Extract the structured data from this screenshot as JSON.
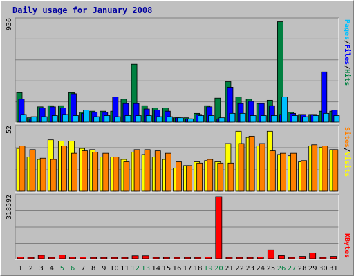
{
  "title": "Daily usage for January 2008",
  "colors": {
    "hits": "#008040",
    "files": "#0000FF",
    "pages": "#00C0FF",
    "visits": "#FFFF00",
    "sites": "#FF8000",
    "kbytes": "#FF0000",
    "weekday_label": "#000000",
    "weekend_label": "#008040",
    "background": "#C0C0C0",
    "plot_bg": "#C0C0C0"
  },
  "panels": {
    "top": {
      "ymax_label": "936",
      "legend": [
        "Pages",
        "/",
        "Files",
        "/",
        "Hits"
      ]
    },
    "middle": {
      "ymax_label": "52",
      "legend": [
        "Sites",
        "/",
        "Visits"
      ]
    },
    "bottom": {
      "ymax_label": "318592",
      "legend": [
        "KBytes"
      ]
    }
  },
  "chart_data": [
    {
      "type": "bar",
      "title": "Daily usage for January 2008",
      "categories": [
        "1",
        "2",
        "3",
        "4",
        "5",
        "6",
        "7",
        "8",
        "9",
        "10",
        "11",
        "12",
        "13",
        "14",
        "15",
        "16",
        "17",
        "18",
        "19",
        "20",
        "21",
        "22",
        "23",
        "24",
        "25",
        "26",
        "27",
        "28",
        "29",
        "30",
        "31"
      ],
      "weekend_days": [
        "5",
        "6",
        "12",
        "13",
        "19",
        "20",
        "26",
        "27"
      ],
      "ylim": [
        0,
        936
      ],
      "series": [
        {
          "name": "Hits",
          "values": [
            270,
            40,
            140,
            150,
            150,
            270,
            90,
            100,
            100,
            100,
            210,
            530,
            150,
            130,
            130,
            40,
            40,
            80,
            150,
            220,
            370,
            230,
            210,
            170,
            200,
            920,
            90,
            70,
            70,
            100,
            100
          ]
        },
        {
          "name": "Files",
          "values": [
            210,
            30,
            130,
            140,
            130,
            260,
            80,
            90,
            90,
            230,
            170,
            170,
            120,
            110,
            100,
            40,
            30,
            70,
            140,
            30,
            320,
            170,
            190,
            170,
            150,
            70,
            80,
            70,
            70,
            460,
            110
          ]
        },
        {
          "name": "Pages",
          "values": [
            70,
            50,
            50,
            60,
            70,
            60,
            110,
            50,
            60,
            50,
            60,
            60,
            60,
            50,
            50,
            40,
            30,
            60,
            60,
            40,
            80,
            80,
            60,
            60,
            60,
            230,
            60,
            50,
            60,
            80,
            60
          ]
        }
      ]
    },
    {
      "type": "bar",
      "categories": [
        "1",
        "2",
        "3",
        "4",
        "5",
        "6",
        "7",
        "8",
        "9",
        "10",
        "11",
        "12",
        "13",
        "14",
        "15",
        "16",
        "17",
        "18",
        "19",
        "20",
        "21",
        "22",
        "23",
        "24",
        "25",
        "26",
        "27",
        "28",
        "29",
        "30",
        "31"
      ],
      "ylim": [
        0,
        52
      ],
      "series": [
        {
          "name": "Visits",
          "values": [
            35,
            28,
            26,
            42,
            41,
            41,
            35,
            34,
            28,
            28,
            26,
            32,
            30,
            28,
            26,
            19,
            21,
            24,
            25,
            24,
            39,
            49,
            44,
            37,
            49,
            30,
            29,
            24,
            37,
            36,
            34
          ]
        },
        {
          "name": "Sites",
          "values": [
            37,
            34,
            27,
            26,
            37,
            31,
            33,
            32,
            31,
            28,
            24,
            34,
            34,
            33,
            31,
            24,
            21,
            23,
            26,
            23,
            23,
            39,
            45,
            39,
            33,
            31,
            31,
            25,
            38,
            37,
            34
          ]
        }
      ]
    },
    {
      "type": "bar",
      "categories": [
        "1",
        "2",
        "3",
        "4",
        "5",
        "6",
        "7",
        "8",
        "9",
        "10",
        "11",
        "12",
        "13",
        "14",
        "15",
        "16",
        "17",
        "18",
        "19",
        "20",
        "21",
        "22",
        "23",
        "24",
        "25",
        "26",
        "27",
        "28",
        "29",
        "30",
        "31"
      ],
      "ylim": [
        0,
        318592
      ],
      "series": [
        {
          "name": "KBytes",
          "values": [
            9000,
            5000,
            18000,
            6000,
            19000,
            8000,
            9000,
            5000,
            4000,
            5000,
            5000,
            15000,
            15000,
            6000,
            5000,
            5000,
            5000,
            5000,
            9000,
            318592,
            5000,
            5000,
            5000,
            9000,
            45000,
            16000,
            5000,
            12000,
            30000,
            5000,
            12000
          ]
        }
      ]
    }
  ]
}
